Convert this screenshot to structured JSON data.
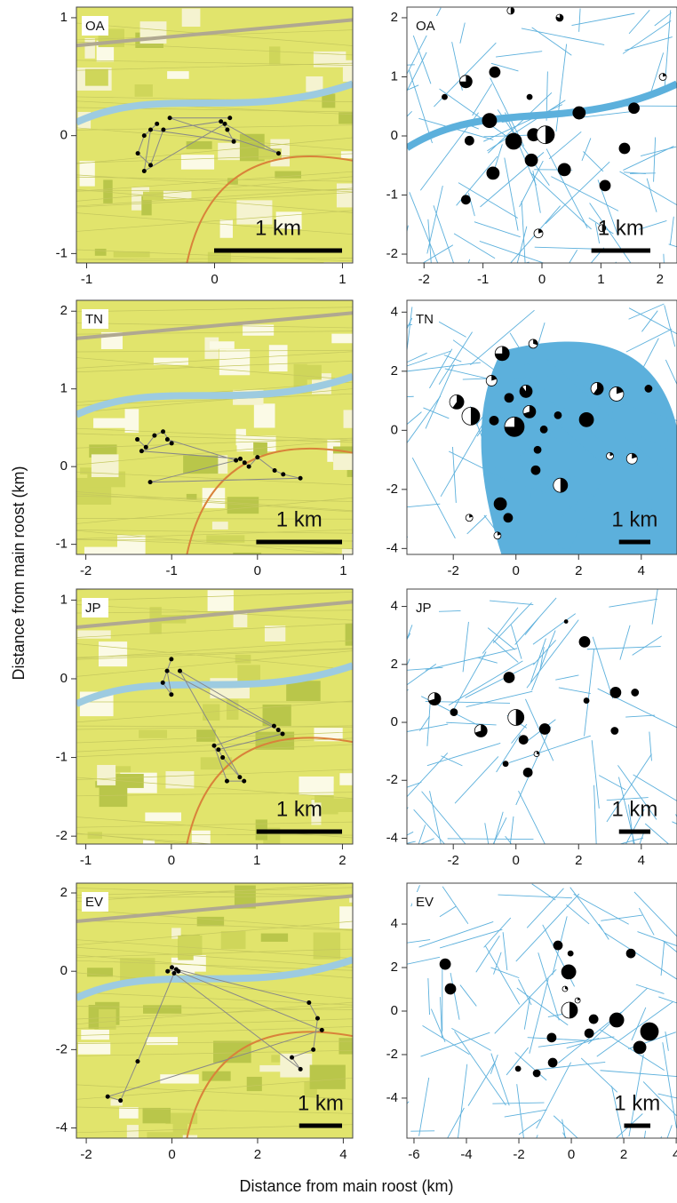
{
  "figure": {
    "xlabel": "Distance from main roost (km)",
    "ylabel": "Distance from main roost (km)"
  },
  "chart_data": [
    {
      "type": "track",
      "label": "OA",
      "xlim": [
        -1.08,
        1.08
      ],
      "ylim": [
        -1.08,
        1.09
      ],
      "xticks": [
        -1,
        0,
        1
      ],
      "yticks": [
        -1,
        0,
        1
      ],
      "scale_bar": {
        "label": "1 km",
        "length": 1
      },
      "x": [
        -0.45,
        -0.55,
        -0.6,
        -0.5,
        -0.4,
        0.05,
        0.1,
        0.15,
        -0.5,
        -0.55,
        0.08,
        0.5,
        -0.35,
        0.12
      ],
      "y": [
        0.1,
        0.0,
        -0.15,
        -0.25,
        0.05,
        0.12,
        0.05,
        -0.05,
        0.05,
        -0.3,
        0.1,
        -0.15,
        0.15,
        0.15
      ]
    },
    {
      "type": "bubble",
      "label": "OA",
      "xlim": [
        -2.29,
        2.29
      ],
      "ylim": [
        -2.15,
        2.18
      ],
      "xticks": [
        -2,
        -1,
        0,
        1,
        2
      ],
      "yticks": [
        -2,
        -1,
        0,
        1,
        2
      ],
      "scale_bar": {
        "label": "1 km",
        "length": 1
      },
      "x": [
        -0.53,
        0.3,
        -0.8,
        -1.29,
        -1.65,
        -0.21,
        0.63,
        1.56,
        2.05,
        -0.89,
        -0.48,
        -0.14,
        0.06,
        -1.23,
        -0.18,
        0.38,
        -0.83,
        1.4,
        1.07,
        -1.29,
        -0.06,
        1.02
      ],
      "y": [
        2.12,
        2.0,
        1.08,
        0.92,
        0.66,
        0.66,
        0.39,
        0.47,
        1.0,
        0.26,
        -0.09,
        0.02,
        0.02,
        -0.08,
        -0.41,
        -0.57,
        -0.63,
        -0.21,
        -0.84,
        -1.08,
        -1.65,
        -1.56
      ],
      "size": [
        4,
        4,
        6,
        7,
        3,
        3,
        7,
        6,
        4,
        8,
        9,
        7,
        10,
        5,
        7,
        7,
        7,
        6,
        6,
        5,
        5,
        4
      ],
      "share": [
        0.5,
        0.8,
        1,
        0.75,
        1,
        1,
        1,
        1,
        0.2,
        1,
        1,
        1,
        0.5,
        1,
        1,
        1,
        1,
        1,
        1,
        1,
        0.2,
        0.5
      ]
    },
    {
      "type": "track",
      "label": "TN",
      "xlim": [
        -2.11,
        1.11
      ],
      "ylim": [
        -1.13,
        2.14
      ],
      "xticks": [
        -2,
        -1,
        0,
        1
      ],
      "yticks": [
        -1,
        0,
        1,
        2
      ],
      "scale_bar": {
        "label": "1 km",
        "length": 1
      },
      "x": [
        -1.4,
        -1.3,
        -1.2,
        -1.1,
        -1.0,
        -1.35,
        -0.2,
        -0.15,
        -0.1,
        0.0,
        0.2,
        0.3,
        0.5,
        -1.25,
        -0.25,
        -1.05
      ],
      "y": [
        0.35,
        0.25,
        0.4,
        0.45,
        0.3,
        0.2,
        0.1,
        0.05,
        0.0,
        0.12,
        -0.05,
        -0.1,
        -0.15,
        -0.2,
        0.08,
        0.35
      ]
    },
    {
      "type": "bubble",
      "label": "TN",
      "xlim": [
        -3.48,
        5.14
      ],
      "ylim": [
        -4.2,
        4.4
      ],
      "xticks": [
        -2,
        0,
        2,
        4
      ],
      "yticks": [
        -4,
        -2,
        0,
        2,
        4
      ],
      "scale_bar": {
        "label": "1 km",
        "length": 1
      },
      "x": [
        -0.44,
        0.55,
        -0.78,
        -0.22,
        0.32,
        -1.89,
        -1.44,
        -0.7,
        -0.05,
        0.43,
        1.34,
        2.25,
        2.59,
        3.21,
        4.23,
        0.89,
        0.69,
        0.63,
        -0.5,
        -0.25,
        1.42,
        3.0,
        3.7,
        -1.49,
        -0.59
      ],
      "y": [
        2.6,
        2.93,
        1.68,
        1.1,
        1.32,
        0.96,
        0.48,
        0.33,
        0.12,
        0.63,
        0.51,
        0.36,
        1.41,
        1.23,
        1.41,
        0.03,
        -0.66,
        -1.35,
        -2.49,
        -2.96,
        -1.86,
        -0.87,
        -0.96,
        -2.96,
        -3.56
      ],
      "size": [
        8,
        5,
        6,
        5,
        7,
        8,
        10,
        5,
        11,
        7,
        4,
        8,
        7,
        8,
        4,
        4,
        4,
        5,
        7,
        5,
        8,
        4,
        6,
        4,
        4
      ],
      "share": [
        0.75,
        0.3,
        0.2,
        1,
        0.9,
        0.6,
        0.5,
        1,
        0.75,
        0.7,
        1,
        1,
        0.6,
        0.2,
        1,
        1,
        1,
        1,
        1,
        1,
        0.5,
        0.2,
        0.2,
        0.2,
        0.2
      ]
    },
    {
      "type": "track",
      "label": "JP",
      "xlim": [
        -1.11,
        2.12
      ],
      "ylim": [
        -2.1,
        1.14
      ],
      "xticks": [
        -1,
        0,
        1,
        2
      ],
      "yticks": [
        -2,
        -1,
        0,
        1
      ],
      "scale_bar": {
        "label": "1 km",
        "length": 1
      },
      "x": [
        0,
        -0.1,
        0,
        -0.05,
        1.25,
        1.3,
        0.55,
        0.6,
        0.8,
        0.1,
        1.2,
        0.5,
        0.65,
        0.85
      ],
      "y": [
        0.25,
        -0.05,
        -0.2,
        0.1,
        -0.65,
        -0.7,
        -0.9,
        -1.0,
        -1.25,
        0.1,
        -0.6,
        -0.85,
        -1.3,
        -1.3
      ]
    },
    {
      "type": "bubble",
      "label": "JP",
      "xlim": [
        -3.48,
        5.14
      ],
      "ylim": [
        -4.2,
        4.6
      ],
      "xticks": [
        -2,
        0,
        2,
        4
      ],
      "yticks": [
        -4,
        -2,
        0,
        2,
        4
      ],
      "scale_bar": {
        "label": "1 km",
        "length": 1
      },
      "x": [
        2.19,
        1.6,
        -0.22,
        3.18,
        3.8,
        -2.6,
        -1.98,
        0,
        0.24,
        0.92,
        -1.12,
        0.66,
        -0.33,
        0.38,
        3.15,
        2.25
      ],
      "y": [
        2.78,
        3.48,
        1.55,
        1.03,
        1.03,
        0.81,
        0.35,
        0.17,
        -0.6,
        -0.23,
        -0.29,
        -1.09,
        -1.43,
        -1.73,
        -0.29,
        0.75
      ],
      "size": [
        6,
        2,
        6,
        6,
        4,
        7,
        4,
        9,
        5,
        6,
        7,
        3,
        3,
        5,
        4,
        3
      ],
      "share": [
        1,
        1,
        1,
        1,
        1,
        0.7,
        1,
        0.5,
        1,
        1,
        0.7,
        0.3,
        1,
        1,
        1,
        1
      ]
    },
    {
      "type": "track",
      "label": "EV",
      "xlim": [
        -2.23,
        4.22
      ],
      "ylim": [
        -4.26,
        2.25
      ],
      "xticks": [
        -2,
        0,
        2,
        4
      ],
      "yticks": [
        -4,
        -2,
        0,
        2
      ],
      "scale_bar": {
        "label": "1 km",
        "length": 1
      },
      "x": [
        0,
        -0.1,
        0.1,
        3.2,
        3.4,
        3.3,
        2.8,
        3.0,
        0.05,
        -0.8,
        -1.2,
        -1.5,
        3.5,
        0.15
      ],
      "y": [
        0.1,
        0,
        0.05,
        -0.8,
        -1.2,
        -2.0,
        -2.2,
        -2.5,
        -0.05,
        -2.3,
        -3.3,
        -3.2,
        -1.5,
        0
      ]
    },
    {
      "type": "bubble",
      "label": "EV",
      "xlim": [
        -6.27,
        4.03
      ],
      "ylim": [
        -5.84,
        5.88
      ],
      "xticks": [
        -6,
        -4,
        -2,
        0,
        2,
        4
      ],
      "yticks": [
        -4,
        -2,
        0,
        2,
        4
      ],
      "scale_bar": {
        "label": "1 km",
        "length": 1
      },
      "x": [
        -4.81,
        -4.61,
        -0.51,
        -0.03,
        2.27,
        -0.1,
        -0.24,
        -0.07,
        0.24,
        0.85,
        0.68,
        1.73,
        2.98,
        2.61,
        -0.75,
        -0.71,
        -1.32,
        -2.03
      ],
      "y": [
        2.16,
        1.02,
        3.02,
        2.65,
        2.65,
        1.8,
        1.02,
        0.04,
        0.49,
        -0.37,
        -1.02,
        -0.41,
        -0.94,
        -1.67,
        -1.22,
        -2.37,
        -2.86,
        -2.65
      ],
      "size": [
        6,
        6,
        5,
        3,
        5,
        8,
        3,
        9,
        3,
        5,
        5,
        8,
        10,
        7,
        5,
        5,
        4,
        3
      ],
      "share": [
        1,
        1,
        1,
        1,
        1,
        1,
        0.3,
        0.5,
        0.2,
        1,
        1,
        1,
        1,
        1,
        1,
        1,
        1,
        1
      ]
    }
  ]
}
